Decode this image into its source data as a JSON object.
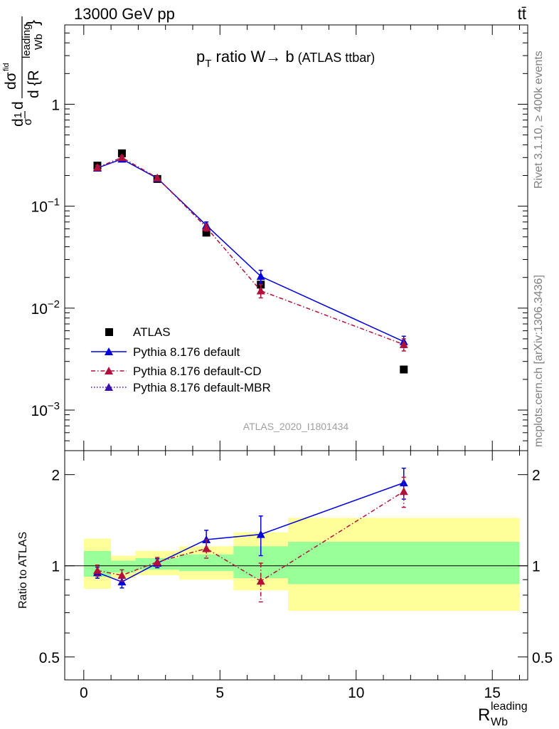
{
  "header": {
    "energy_label": "13000 GeV pp",
    "process_label": "tt̄"
  },
  "side_labels": {
    "rivet": "Rivet 3.1.10, ≥ 400k events",
    "mcplots": "mcplots.cern.ch [arXiv:1306.3436]"
  },
  "chart_data": [
    {
      "type": "scatter",
      "panel": "main",
      "title_main": "p",
      "title_sub": "T",
      "title_rest": " ratio W→ b",
      "title_small": " (ATLAS ttbar)",
      "analysis_id": "ATLAS_2020_I1801434",
      "ylabel_parts": [
        "d",
        "σ",
        "1",
        "d",
        "dσ",
        "fid",
        "d {R",
        "leading",
        "Wb",
        "}"
      ],
      "yscale": "log",
      "ylim": [
        0.0004,
        6
      ],
      "xlim": [
        -0.7,
        16.3
      ],
      "y_ticks": [
        {
          "value": 1,
          "base": "1",
          "exp": ""
        },
        {
          "value": 0.1,
          "base": "10",
          "exp": "−1"
        },
        {
          "value": 0.01,
          "base": "10",
          "exp": "−2"
        },
        {
          "value": 0.001,
          "base": "10",
          "exp": "−3"
        }
      ],
      "legend_position": "bottom-left",
      "series": [
        {
          "name": "ATLAS",
          "style": "data",
          "color": "#000000",
          "x": [
            0.5,
            1.4,
            2.7,
            4.5,
            6.5,
            11.75
          ],
          "y": [
            0.25,
            0.33,
            0.185,
            0.055,
            0.017,
            0.0025
          ]
        },
        {
          "name": "Pythia 8.176 default",
          "style": "solid",
          "color": "#0000dd",
          "x": [
            0.5,
            1.4,
            2.7,
            4.5,
            6.5,
            11.75
          ],
          "y": [
            0.237,
            0.29,
            0.188,
            0.065,
            0.0205,
            0.0047
          ],
          "err": [
            0.012,
            0.012,
            0.006,
            0.005,
            0.003,
            0.0006
          ]
        },
        {
          "name": "Pythia 8.176 default-CD",
          "style": "dashdot",
          "color": "#b0103a",
          "x": [
            0.5,
            1.4,
            2.7,
            4.5,
            6.5,
            11.75
          ],
          "y": [
            0.24,
            0.3,
            0.19,
            0.062,
            0.0148,
            0.0044
          ],
          "err": [
            0.012,
            0.012,
            0.006,
            0.005,
            0.0022,
            0.0006
          ]
        },
        {
          "name": "Pythia 8.176 default-MBR",
          "style": "dotted",
          "color": "#3a10b0",
          "x": [],
          "y": []
        }
      ]
    },
    {
      "type": "scatter",
      "panel": "ratio",
      "ylabel": "Ratio to ATLAS",
      "xlabel_main": "R",
      "xlabel_sup": "leading",
      "xlabel_sub": "Wb",
      "yscale": "log",
      "ylim": [
        0.42,
        2.4
      ],
      "xlim": [
        -0.7,
        16.3
      ],
      "x_ticks": [
        {
          "value": 0,
          "label": "0"
        },
        {
          "value": 5,
          "label": "5"
        },
        {
          "value": 10,
          "label": "10"
        },
        {
          "value": 15,
          "label": "15"
        }
      ],
      "y_ticks": [
        {
          "value": 0.5,
          "label": "0.5"
        },
        {
          "value": 1,
          "label": "1"
        },
        {
          "value": 2,
          "label": "2"
        }
      ],
      "bands": [
        {
          "x0": 0,
          "x1": 1,
          "inner": [
            0.92,
            1.12
          ],
          "outer": [
            0.84,
            1.23
          ]
        },
        {
          "x0": 1,
          "x1": 1.9,
          "inner": [
            0.95,
            1.04
          ],
          "outer": [
            0.91,
            1.08
          ]
        },
        {
          "x0": 1.9,
          "x1": 3.5,
          "inner": [
            0.97,
            1.06
          ],
          "outer": [
            0.93,
            1.12
          ]
        },
        {
          "x0": 3.5,
          "x1": 5.5,
          "inner": [
            0.96,
            1.09
          ],
          "outer": [
            0.9,
            1.16
          ]
        },
        {
          "x0": 5.5,
          "x1": 7.5,
          "inner": [
            0.91,
            1.16
          ],
          "outer": [
            0.83,
            1.29
          ]
        },
        {
          "x0": 7.5,
          "x1": 16,
          "inner": [
            0.87,
            1.2
          ],
          "outer": [
            0.71,
            1.44
          ]
        }
      ],
      "series": [
        {
          "name": "Pythia 8.176 default",
          "color": "#0000dd",
          "style": "solid",
          "x": [
            0.5,
            1.4,
            2.7,
            4.5,
            6.5,
            11.75
          ],
          "y": [
            0.95,
            0.885,
            1.02,
            1.22,
            1.27,
            1.88
          ],
          "err": [
            0.04,
            0.04,
            0.035,
            0.09,
            0.19,
            0.22
          ]
        },
        {
          "name": "Pythia 8.176 default-CD",
          "color": "#b0103a",
          "style": "dashdot",
          "x": [
            0.5,
            1.4,
            2.7,
            4.5,
            6.5,
            11.75
          ],
          "y": [
            0.965,
            0.93,
            1.03,
            1.14,
            0.89,
            1.76
          ],
          "err": [
            0.04,
            0.04,
            0.035,
            0.08,
            0.13,
            0.2
          ]
        }
      ]
    }
  ]
}
